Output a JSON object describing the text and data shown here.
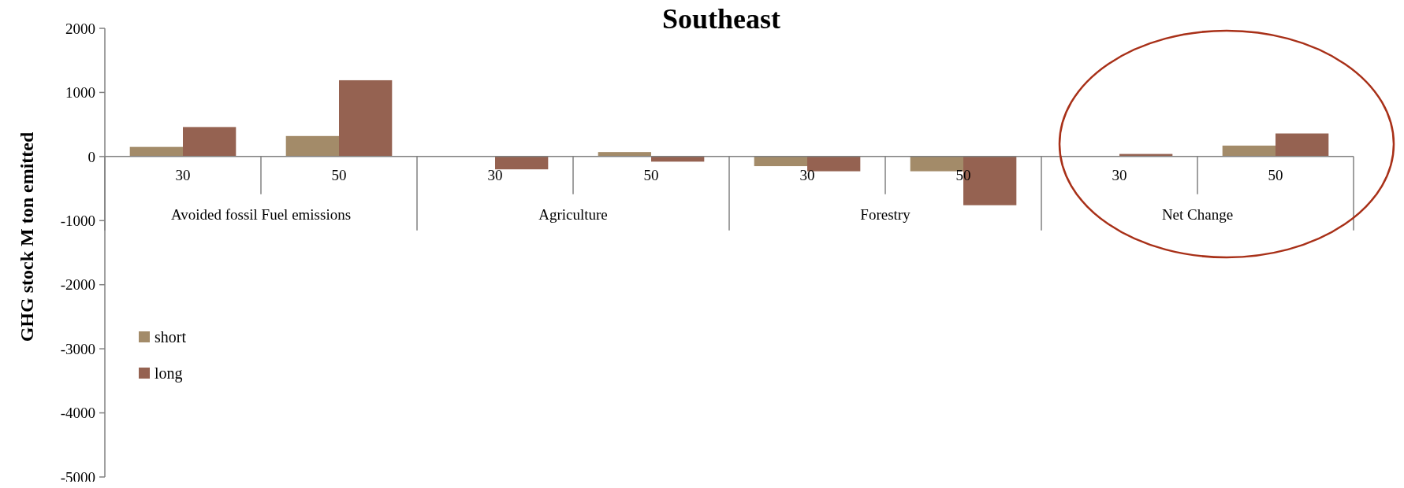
{
  "chart_data": {
    "type": "bar",
    "title": "Southeast",
    "ylabel": "GHG stock M ton emitted",
    "categories": [
      "30",
      "50",
      "30",
      "50",
      "30",
      "50",
      "30",
      "50"
    ],
    "annotations": [
      "Avoided fossil Fuel emissions",
      "Agriculture",
      "Forestry",
      "Net Change"
    ],
    "series": [
      {
        "name": "short",
        "color": "#a38b69",
        "values": [
          150,
          320,
          10,
          70,
          -150,
          -230,
          10,
          170
        ]
      },
      {
        "name": "long",
        "color": "#956251",
        "values": [
          460,
          1190,
          -200,
          -80,
          -230,
          -760,
          40,
          360
        ]
      }
    ],
    "ylim": [
      -5000,
      2000
    ],
    "yticks": [
      -5000,
      -4000,
      -3000,
      -2000,
      -1000,
      0,
      1000,
      2000
    ],
    "grid": false,
    "legend": "left"
  }
}
